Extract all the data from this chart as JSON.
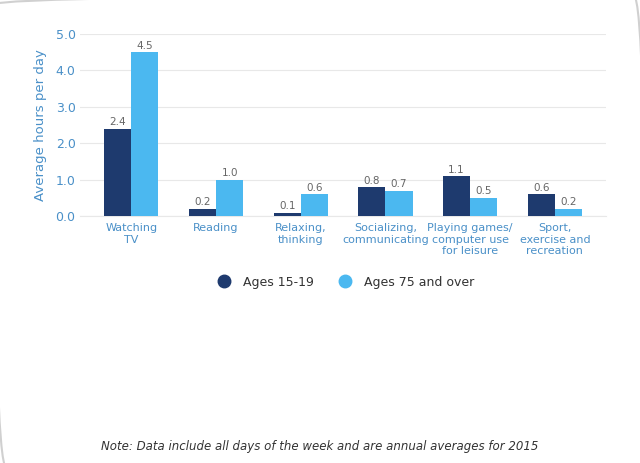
{
  "categories": [
    "Watching\nTV",
    "Reading",
    "Relaxing,\nthinking",
    "Socializing,\ncommunicating",
    "Playing games/\ncomputer use\nfor leisure",
    "Sport,\nexercise and\nrecreation"
  ],
  "ages_15_19": [
    2.4,
    0.2,
    0.1,
    0.8,
    1.1,
    0.6
  ],
  "ages_75_over": [
    4.5,
    1.0,
    0.6,
    0.7,
    0.5,
    0.2
  ],
  "color_young": "#1e3a6e",
  "color_old": "#4bb8f0",
  "ylabel": "Average hours per day",
  "ylim": [
    0,
    5.0
  ],
  "yticks": [
    0.0,
    1.0,
    2.0,
    3.0,
    4.0,
    5.0
  ],
  "legend_young": "Ages 15-19",
  "legend_old": "Ages 75 and over",
  "note": "Note: Data include all days of the week and are annual averages for 2015",
  "bar_width": 0.32,
  "background_color": "#ffffff",
  "label_fontsize": 8,
  "value_fontsize": 7.5,
  "axis_label_color": "#4a90c8",
  "tick_label_color": "#4a90c8",
  "ylabel_color": "#4a90c8",
  "grid_color": "#e8e8e8",
  "border_color": "#d0d0d0",
  "note_color": "#333333",
  "value_label_color": "#666666"
}
